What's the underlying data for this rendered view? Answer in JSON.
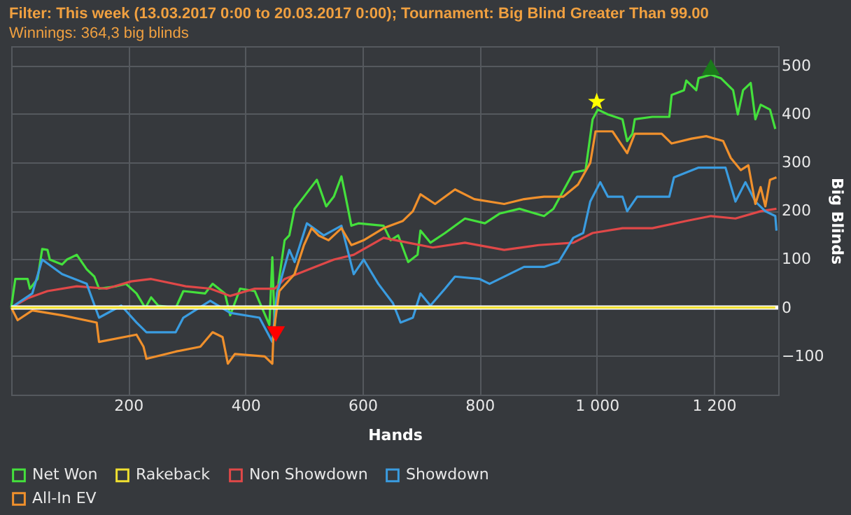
{
  "chart_data": {
    "type": "line",
    "title": "Filter: This week (13.03.2017 0:00 to 20.03.2017 0:00); Tournament: Big Blind Greater Than 99.00",
    "subtitle": "Winnings: 364,3 big blinds",
    "xlabel": "Hands",
    "ylabel": "Big Blinds",
    "xlim": [
      0,
      1310
    ],
    "xticks": [
      200,
      400,
      600,
      800,
      {
        "value": 1000,
        "label": "1 000"
      },
      {
        "value": 1200,
        "label": "1 200"
      }
    ],
    "ylim": [
      -180,
      540
    ],
    "yticks": [
      -100,
      0,
      100,
      200,
      300,
      400,
      500
    ],
    "grid": true,
    "legend": "bottom",
    "marker": "none",
    "ref_lines": [
      {
        "axis": "y",
        "value": 0,
        "color": "#ffffff"
      }
    ],
    "series": [
      {
        "name": "Net Won",
        "color": "#44e03c",
        "x": [
          0,
          7,
          28,
          32,
          45,
          53,
          62,
          66,
          87,
          95,
          112,
          129,
          142,
          150,
          180,
          196,
          214,
          229,
          239,
          251,
          281,
          294,
          331,
          344,
          365,
          374,
          391,
          416,
          441,
          446,
          450,
          454,
          467,
          475,
          484,
          500,
          522,
          538,
          551,
          564,
          572,
          581,
          593,
          636,
          648,
          661,
          678,
          694,
          699,
          716,
          741,
          775,
          809,
          834,
          868,
          910,
          926,
          960,
          981,
          993,
          1002,
          1019,
          1044,
          1052,
          1061,
          1065,
          1095,
          1124,
          1128,
          1149,
          1153,
          1170,
          1174,
          1195,
          1212,
          1233,
          1241,
          1250,
          1263,
          1271,
          1280,
          1296,
          1305
        ],
        "values": [
          0,
          59,
          59,
          39,
          59,
          121,
          119,
          99,
          89,
          99,
          109,
          79,
          64,
          39,
          44,
          49,
          29,
          -1,
          21,
          4,
          -1,
          34,
          29,
          49,
          29,
          -16,
          39,
          34,
          -36,
          104,
          -41,
          29,
          139,
          149,
          204,
          229,
          264,
          209,
          229,
          271,
          224,
          169,
          174,
          169,
          139,
          149,
          94,
          109,
          159,
          134,
          154,
          184,
          174,
          194,
          204,
          189,
          204,
          279,
          284,
          389,
          409,
          399,
          389,
          344,
          359,
          389,
          394,
          394,
          439,
          449,
          469,
          449,
          474,
          481,
          474,
          449,
          399,
          449,
          464,
          389,
          419,
          409,
          369
        ]
      },
      {
        "name": "Rakeback",
        "color": "#f0e030",
        "x": [
          0,
          1305
        ],
        "values": [
          0,
          0
        ]
      },
      {
        "name": "Non Showdown",
        "color": "#e04848",
        "x": [
          0,
          28,
          62,
          112,
          163,
          205,
          239,
          298,
          340,
          374,
          416,
          450,
          467,
          509,
          551,
          585,
          636,
          678,
          720,
          775,
          842,
          901,
          960,
          993,
          1044,
          1095,
          1153,
          1195,
          1237,
          1280,
          1307
        ],
        "values": [
          0,
          19,
          34,
          44,
          39,
          54,
          59,
          44,
          39,
          24,
          39,
          39,
          59,
          79,
          99,
          109,
          144,
          134,
          124,
          134,
          119,
          129,
          134,
          154,
          164,
          164,
          179,
          189,
          184,
          199,
          204
        ]
      },
      {
        "name": "Showdown",
        "color": "#3a9ce0",
        "x": [
          0,
          36,
          53,
          87,
          129,
          150,
          188,
          214,
          231,
          281,
          294,
          340,
          374,
          424,
          446,
          454,
          475,
          484,
          505,
          534,
          564,
          585,
          602,
          627,
          652,
          665,
          686,
          699,
          716,
          741,
          758,
          800,
          817,
          859,
          876,
          910,
          935,
          960,
          977,
          989,
          1006,
          1019,
          1044,
          1052,
          1069,
          1124,
          1132,
          1153,
          1174,
          1220,
          1237,
          1254,
          1271,
          1288,
          1305,
          1307
        ],
        "values": [
          0,
          29,
          99,
          69,
          49,
          -21,
          4,
          -31,
          -51,
          -51,
          -21,
          14,
          -11,
          -21,
          -71,
          29,
          119,
          94,
          174,
          149,
          169,
          69,
          99,
          49,
          9,
          -31,
          -21,
          29,
          4,
          39,
          64,
          59,
          49,
          74,
          84,
          84,
          94,
          144,
          154,
          219,
          259,
          229,
          229,
          199,
          229,
          229,
          269,
          279,
          289,
          289,
          219,
          259,
          219,
          199,
          189,
          159
        ]
      },
      {
        "name": "All-In EV",
        "color": "#f0902c",
        "x": [
          0,
          11,
          36,
          87,
          146,
          150,
          214,
          226,
          231,
          281,
          323,
          344,
          361,
          370,
          382,
          433,
          446,
          448,
          458,
          484,
          500,
          513,
          525,
          542,
          564,
          581,
          602,
          636,
          669,
          686,
          699,
          724,
          758,
          791,
          842,
          876,
          910,
          943,
          968,
          989,
          998,
          1027,
          1052,
          1065,
          1111,
          1128,
          1162,
          1187,
          1216,
          1229,
          1246,
          1259,
          1271,
          1280,
          1288,
          1296,
          1307
        ],
        "values": [
          0,
          -26,
          -6,
          -16,
          -31,
          -71,
          -56,
          -81,
          -106,
          -91,
          -81,
          -51,
          -61,
          -116,
          -96,
          -101,
          -116,
          -51,
          34,
          69,
          129,
          164,
          149,
          139,
          164,
          129,
          139,
          164,
          179,
          199,
          234,
          214,
          244,
          224,
          214,
          224,
          229,
          229,
          254,
          299,
          364,
          364,
          319,
          359,
          359,
          339,
          349,
          354,
          344,
          309,
          284,
          294,
          214,
          249,
          209,
          264,
          269
        ]
      },
      {
        "type": "scatter",
        "marker": "triangle-down",
        "color": "#ff0000",
        "x": [
          452
        ],
        "values": [
          -55
        ]
      },
      {
        "type": "scatter",
        "marker": "star",
        "color": "#ffff00",
        "x": [
          1000
        ],
        "values": [
          425
        ]
      },
      {
        "type": "scatter",
        "marker": "triangle",
        "color": "#1a7a1a",
        "x": [
          1195
        ],
        "values": [
          497
        ]
      }
    ]
  }
}
